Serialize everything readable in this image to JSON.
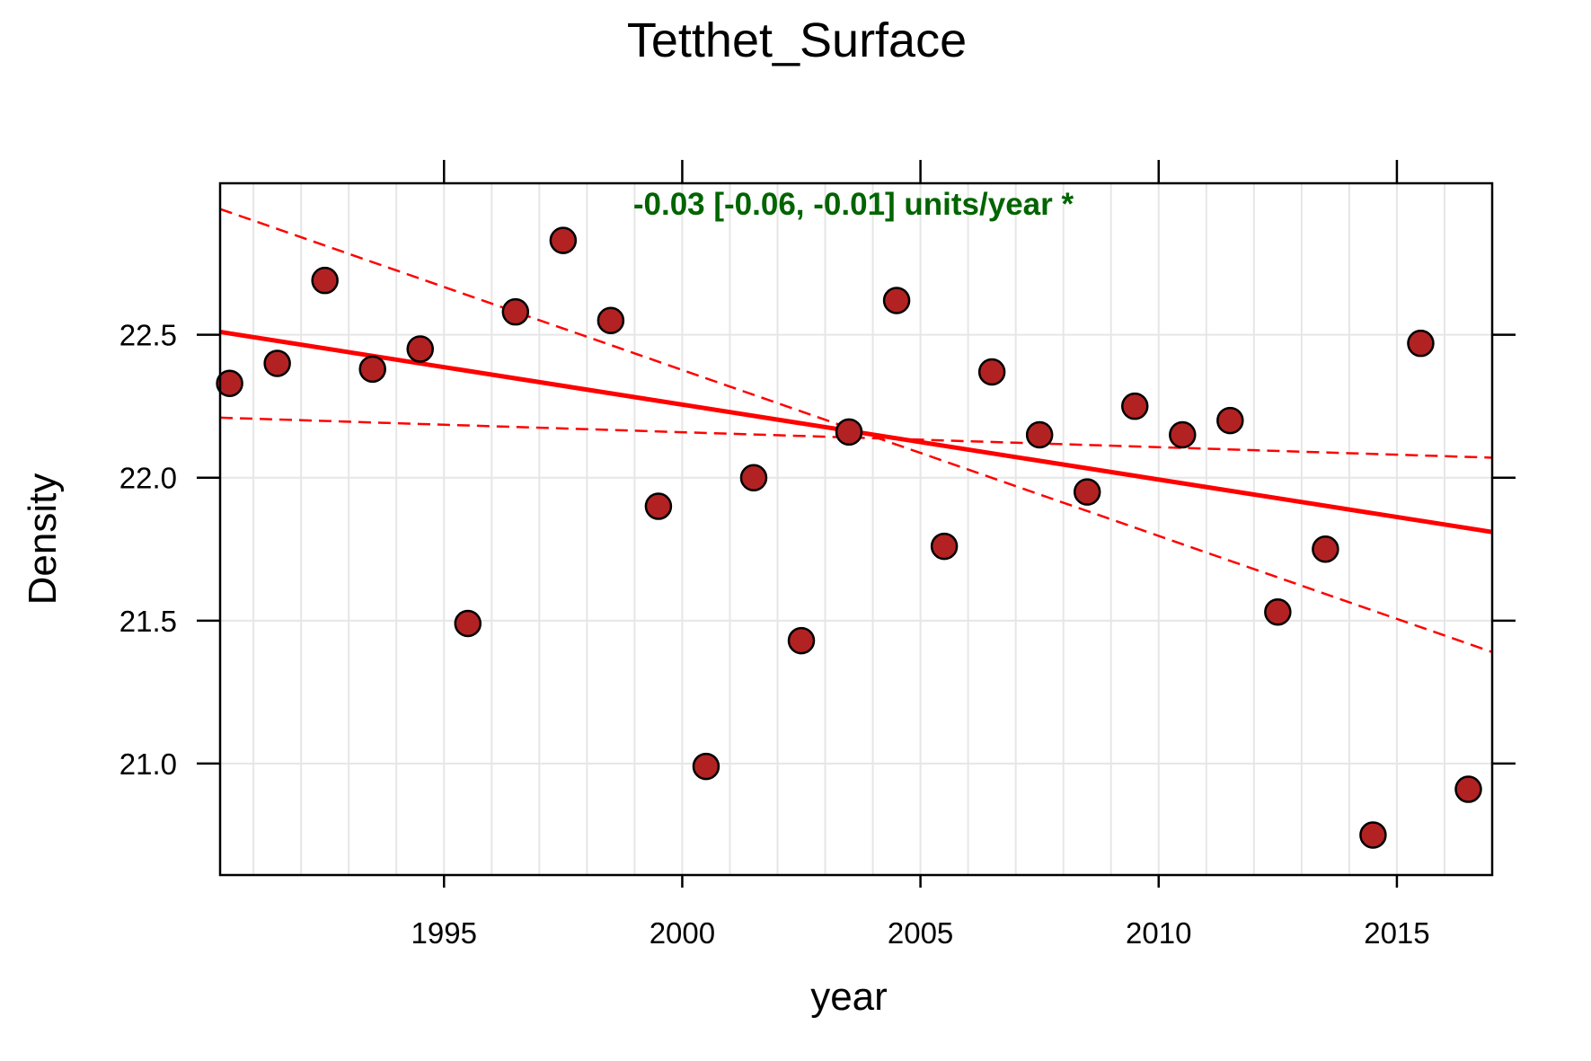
{
  "chart_data": {
    "type": "scatter",
    "title": "Tetthet_Surface",
    "xlabel": "year",
    "ylabel": "Density",
    "xlim": [
      1990.3,
      2017.0
    ],
    "ylim": [
      20.61,
      23.03
    ],
    "x_ticks": [
      1995,
      2000,
      2005,
      2010,
      2015
    ],
    "x_tick_labels": [
      "1995",
      "2000",
      "2005",
      "2010",
      "2015"
    ],
    "y_ticks": [
      21.0,
      21.5,
      22.0,
      22.5
    ],
    "y_tick_labels": [
      "21.0",
      "21.5",
      "22.0",
      "22.5"
    ],
    "grid": true,
    "annotation": "-0.03 [-0.06, -0.01] units/year *",
    "annotation_color": "#006400",
    "point_color": "#b22222",
    "trend_color": "#ff0000",
    "points": [
      {
        "x": 1990.5,
        "y": 22.33
      },
      {
        "x": 1991.5,
        "y": 22.4
      },
      {
        "x": 1992.5,
        "y": 22.69
      },
      {
        "x": 1993.5,
        "y": 22.38
      },
      {
        "x": 1994.5,
        "y": 22.45
      },
      {
        "x": 1995.5,
        "y": 21.49
      },
      {
        "x": 1996.5,
        "y": 22.58
      },
      {
        "x": 1997.5,
        "y": 22.83
      },
      {
        "x": 1998.5,
        "y": 22.55
      },
      {
        "x": 1999.5,
        "y": 21.9
      },
      {
        "x": 2000.5,
        "y": 20.99
      },
      {
        "x": 2001.5,
        "y": 22.0
      },
      {
        "x": 2002.5,
        "y": 21.43
      },
      {
        "x": 2003.5,
        "y": 22.16
      },
      {
        "x": 2004.5,
        "y": 22.62
      },
      {
        "x": 2005.5,
        "y": 21.76
      },
      {
        "x": 2006.5,
        "y": 22.37
      },
      {
        "x": 2007.5,
        "y": 22.15
      },
      {
        "x": 2008.5,
        "y": 21.95
      },
      {
        "x": 2009.5,
        "y": 22.25
      },
      {
        "x": 2010.5,
        "y": 22.15
      },
      {
        "x": 2011.5,
        "y": 22.2
      },
      {
        "x": 2012.5,
        "y": 21.53
      },
      {
        "x": 2013.5,
        "y": 21.75
      },
      {
        "x": 2014.5,
        "y": 20.75
      },
      {
        "x": 2015.5,
        "y": 22.47
      },
      {
        "x": 2016.5,
        "y": 20.91
      }
    ],
    "trend_line": {
      "x": [
        1990.3,
        2017.0
      ],
      "y": [
        22.51,
        21.81
      ]
    },
    "ci_lower_line": {
      "x": [
        1990.3,
        2017.0
      ],
      "y": [
        22.94,
        21.39
      ]
    },
    "ci_upper_line": {
      "x": [
        1990.3,
        2017.0
      ],
      "y": [
        22.21,
        22.07
      ]
    }
  }
}
